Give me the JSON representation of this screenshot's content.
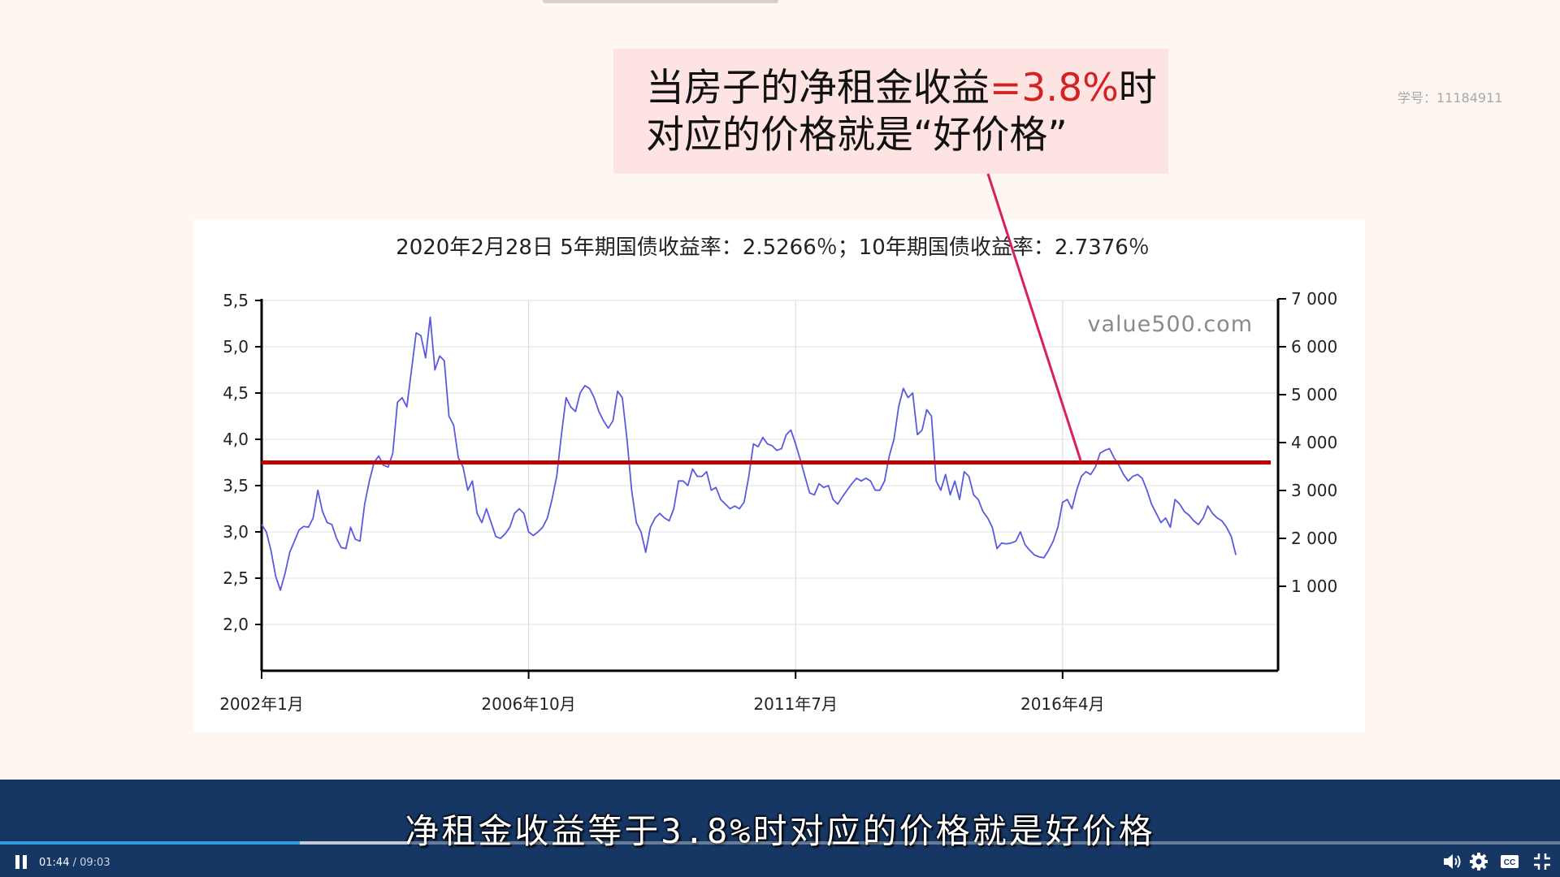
{
  "callout": {
    "line1_prefix": "当房子的净租金收益",
    "line1_highlight": "=3.8%",
    "line1_suffix": "时",
    "line2": "对应的价格就是“好价格”"
  },
  "student_id": "学号：11184911",
  "chart_data": {
    "type": "line",
    "title": "2020年2月28日 5年期国债收益率：2.5266％；10年期国债收益率：2.7376％",
    "watermark": "value500.com",
    "x_ticks": [
      "2002年1月",
      "2006年10月",
      "2011年7月",
      "2016年4月"
    ],
    "x_range": [
      "2002-01",
      "2020-02"
    ],
    "y_left": {
      "ticks": [
        "5,5",
        "5,0",
        "4,5",
        "4,0",
        "3,5",
        "3,0",
        "2,5",
        "2,0"
      ],
      "ylim": [
        1.5,
        5.5
      ]
    },
    "y_right": {
      "ticks": [
        "7 000",
        "6 000",
        "5 000",
        "4 000",
        "3 000",
        "2 000",
        "1 000"
      ],
      "ylim": [
        0,
        7000
      ]
    },
    "grid": true,
    "reference_line": {
      "y": 3.75,
      "color": "#c00000"
    },
    "series": [
      {
        "color": "#5a5adf",
        "points": [
          [
            "2002-01",
            3.08
          ],
          [
            "2002-02",
            3.0
          ],
          [
            "2002-03",
            2.8
          ],
          [
            "2002-04",
            2.52
          ],
          [
            "2002-05",
            2.37
          ],
          [
            "2002-06",
            2.55
          ],
          [
            "2002-07",
            2.78
          ],
          [
            "2002-08",
            2.9
          ],
          [
            "2002-09",
            3.02
          ],
          [
            "2002-10",
            3.06
          ],
          [
            "2002-11",
            3.05
          ],
          [
            "2002-12",
            3.15
          ],
          [
            "2003-01",
            3.45
          ],
          [
            "2003-02",
            3.22
          ],
          [
            "2003-03",
            3.1
          ],
          [
            "2003-04",
            3.08
          ],
          [
            "2003-05",
            2.93
          ],
          [
            "2003-06",
            2.83
          ],
          [
            "2003-07",
            2.82
          ],
          [
            "2003-08",
            3.05
          ],
          [
            "2003-09",
            2.92
          ],
          [
            "2003-10",
            2.9
          ],
          [
            "2003-11",
            3.3
          ],
          [
            "2003-12",
            3.55
          ],
          [
            "2004-01",
            3.75
          ],
          [
            "2004-02",
            3.82
          ],
          [
            "2004-03",
            3.72
          ],
          [
            "2004-04",
            3.7
          ],
          [
            "2004-05",
            3.85
          ],
          [
            "2004-06",
            4.4
          ],
          [
            "2004-07",
            4.45
          ],
          [
            "2004-08",
            4.35
          ],
          [
            "2004-09",
            4.75
          ],
          [
            "2004-10",
            5.15
          ],
          [
            "2004-11",
            5.12
          ],
          [
            "2004-12",
            4.88
          ],
          [
            "2005-01",
            5.32
          ],
          [
            "2005-02",
            4.75
          ],
          [
            "2005-03",
            4.9
          ],
          [
            "2005-04",
            4.85
          ],
          [
            "2005-05",
            4.25
          ],
          [
            "2005-06",
            4.15
          ],
          [
            "2005-07",
            3.8
          ],
          [
            "2005-08",
            3.7
          ],
          [
            "2005-09",
            3.45
          ],
          [
            "2005-10",
            3.55
          ],
          [
            "2005-11",
            3.2
          ],
          [
            "2005-12",
            3.1
          ],
          [
            "2006-01",
            3.25
          ],
          [
            "2006-02",
            3.1
          ],
          [
            "2006-03",
            2.95
          ],
          [
            "2006-04",
            2.93
          ],
          [
            "2006-05",
            2.98
          ],
          [
            "2006-06",
            3.05
          ],
          [
            "2006-07",
            3.2
          ],
          [
            "2006-08",
            3.25
          ],
          [
            "2006-09",
            3.2
          ],
          [
            "2006-10",
            3.0
          ],
          [
            "2006-11",
            2.96
          ],
          [
            "2006-12",
            3.0
          ],
          [
            "2007-01",
            3.05
          ],
          [
            "2007-02",
            3.15
          ],
          [
            "2007-03",
            3.35
          ],
          [
            "2007-04",
            3.6
          ],
          [
            "2007-05",
            4.05
          ],
          [
            "2007-06",
            4.45
          ],
          [
            "2007-07",
            4.35
          ],
          [
            "2007-08",
            4.3
          ],
          [
            "2007-09",
            4.5
          ],
          [
            "2007-10",
            4.58
          ],
          [
            "2007-11",
            4.55
          ],
          [
            "2007-12",
            4.45
          ],
          [
            "2008-01",
            4.3
          ],
          [
            "2008-02",
            4.2
          ],
          [
            "2008-03",
            4.12
          ],
          [
            "2008-04",
            4.2
          ],
          [
            "2008-05",
            4.52
          ],
          [
            "2008-06",
            4.45
          ],
          [
            "2008-07",
            4.0
          ],
          [
            "2008-08",
            3.45
          ],
          [
            "2008-09",
            3.1
          ],
          [
            "2008-10",
            3.0
          ],
          [
            "2008-11",
            2.78
          ],
          [
            "2008-12",
            3.05
          ],
          [
            "2009-01",
            3.15
          ],
          [
            "2009-02",
            3.2
          ],
          [
            "2009-03",
            3.15
          ],
          [
            "2009-04",
            3.12
          ],
          [
            "2009-05",
            3.25
          ],
          [
            "2009-06",
            3.55
          ],
          [
            "2009-07",
            3.55
          ],
          [
            "2009-08",
            3.5
          ],
          [
            "2009-09",
            3.68
          ],
          [
            "2009-10",
            3.6
          ],
          [
            "2009-11",
            3.6
          ],
          [
            "2009-12",
            3.65
          ],
          [
            "2010-01",
            3.45
          ],
          [
            "2010-02",
            3.48
          ],
          [
            "2010-03",
            3.35
          ],
          [
            "2010-04",
            3.3
          ],
          [
            "2010-05",
            3.25
          ],
          [
            "2010-06",
            3.28
          ],
          [
            "2010-07",
            3.25
          ],
          [
            "2010-08",
            3.32
          ],
          [
            "2010-09",
            3.6
          ],
          [
            "2010-10",
            3.95
          ],
          [
            "2010-11",
            3.92
          ],
          [
            "2010-12",
            4.02
          ],
          [
            "2011-01",
            3.95
          ],
          [
            "2011-02",
            3.93
          ],
          [
            "2011-03",
            3.88
          ],
          [
            "2011-04",
            3.9
          ],
          [
            "2011-05",
            4.05
          ],
          [
            "2011-06",
            4.1
          ],
          [
            "2011-07",
            3.95
          ],
          [
            "2011-08",
            3.78
          ],
          [
            "2011-09",
            3.6
          ],
          [
            "2011-10",
            3.42
          ],
          [
            "2011-11",
            3.4
          ],
          [
            "2011-12",
            3.52
          ],
          [
            "2012-01",
            3.48
          ],
          [
            "2012-02",
            3.5
          ],
          [
            "2012-03",
            3.35
          ],
          [
            "2012-04",
            3.3
          ],
          [
            "2012-05",
            3.38
          ],
          [
            "2012-06",
            3.45
          ],
          [
            "2012-07",
            3.52
          ],
          [
            "2012-08",
            3.58
          ],
          [
            "2012-09",
            3.55
          ],
          [
            "2012-10",
            3.58
          ],
          [
            "2012-11",
            3.55
          ],
          [
            "2012-12",
            3.45
          ],
          [
            "2013-01",
            3.45
          ],
          [
            "2013-02",
            3.55
          ],
          [
            "2013-03",
            3.82
          ],
          [
            "2013-04",
            4.0
          ],
          [
            "2013-05",
            4.35
          ],
          [
            "2013-06",
            4.55
          ],
          [
            "2013-07",
            4.45
          ],
          [
            "2013-08",
            4.5
          ],
          [
            "2013-09",
            4.05
          ],
          [
            "2013-10",
            4.1
          ],
          [
            "2013-11",
            4.32
          ],
          [
            "2013-12",
            4.25
          ],
          [
            "2014-01",
            3.55
          ],
          [
            "2014-02",
            3.45
          ],
          [
            "2014-03",
            3.62
          ],
          [
            "2014-04",
            3.4
          ],
          [
            "2014-05",
            3.55
          ],
          [
            "2014-06",
            3.35
          ],
          [
            "2014-07",
            3.65
          ],
          [
            "2014-08",
            3.6
          ],
          [
            "2014-09",
            3.4
          ],
          [
            "2014-10",
            3.35
          ],
          [
            "2014-11",
            3.22
          ],
          [
            "2014-12",
            3.15
          ],
          [
            "2015-01",
            3.05
          ],
          [
            "2015-02",
            2.82
          ],
          [
            "2015-03",
            2.88
          ],
          [
            "2015-04",
            2.87
          ],
          [
            "2015-05",
            2.88
          ],
          [
            "2015-06",
            2.9
          ],
          [
            "2015-07",
            3.0
          ],
          [
            "2015-08",
            2.86
          ],
          [
            "2015-09",
            2.8
          ],
          [
            "2015-10",
            2.75
          ],
          [
            "2015-11",
            2.73
          ],
          [
            "2015-12",
            2.72
          ],
          [
            "2016-01",
            2.8
          ],
          [
            "2016-02",
            2.9
          ],
          [
            "2016-03",
            3.05
          ],
          [
            "2016-04",
            3.32
          ],
          [
            "2016-05",
            3.35
          ],
          [
            "2016-06",
            3.25
          ],
          [
            "2016-07",
            3.45
          ],
          [
            "2016-08",
            3.6
          ],
          [
            "2016-09",
            3.65
          ],
          [
            "2016-10",
            3.62
          ],
          [
            "2016-11",
            3.7
          ],
          [
            "2016-12",
            3.85
          ],
          [
            "2017-01",
            3.88
          ],
          [
            "2017-02",
            3.9
          ],
          [
            "2017-03",
            3.8
          ],
          [
            "2017-04",
            3.72
          ],
          [
            "2017-05",
            3.62
          ],
          [
            "2017-06",
            3.55
          ],
          [
            "2017-07",
            3.6
          ],
          [
            "2017-08",
            3.62
          ],
          [
            "2017-09",
            3.58
          ],
          [
            "2017-10",
            3.45
          ],
          [
            "2017-11",
            3.3
          ],
          [
            "2017-12",
            3.2
          ],
          [
            "2018-01",
            3.1
          ],
          [
            "2018-02",
            3.15
          ],
          [
            "2018-03",
            3.05
          ],
          [
            "2018-04",
            3.35
          ],
          [
            "2018-05",
            3.3
          ],
          [
            "2018-06",
            3.22
          ],
          [
            "2018-07",
            3.18
          ],
          [
            "2018-08",
            3.12
          ],
          [
            "2018-09",
            3.08
          ],
          [
            "2018-10",
            3.15
          ],
          [
            "2018-11",
            3.28
          ],
          [
            "2018-12",
            3.2
          ],
          [
            "2019-01",
            3.15
          ],
          [
            "2019-02",
            3.12
          ],
          [
            "2019-03",
            3.05
          ],
          [
            "2019-04",
            2.95
          ],
          [
            "2019-05",
            2.75
          ]
        ]
      }
    ]
  },
  "subtitle": "净租金收益等于3.8%时对应的价格就是好价格",
  "player": {
    "current_time": "01:44",
    "separator": " / ",
    "total_time": "09:03",
    "progress_fraction": 0.192,
    "buffer_fraction": 0.262,
    "controls": [
      "pause-icon",
      "volume-icon",
      "settings-icon",
      "subtitles-icon",
      "exit-fullscreen-icon"
    ],
    "accent_color": "#2f9be0",
    "bar_color": "#163663"
  }
}
